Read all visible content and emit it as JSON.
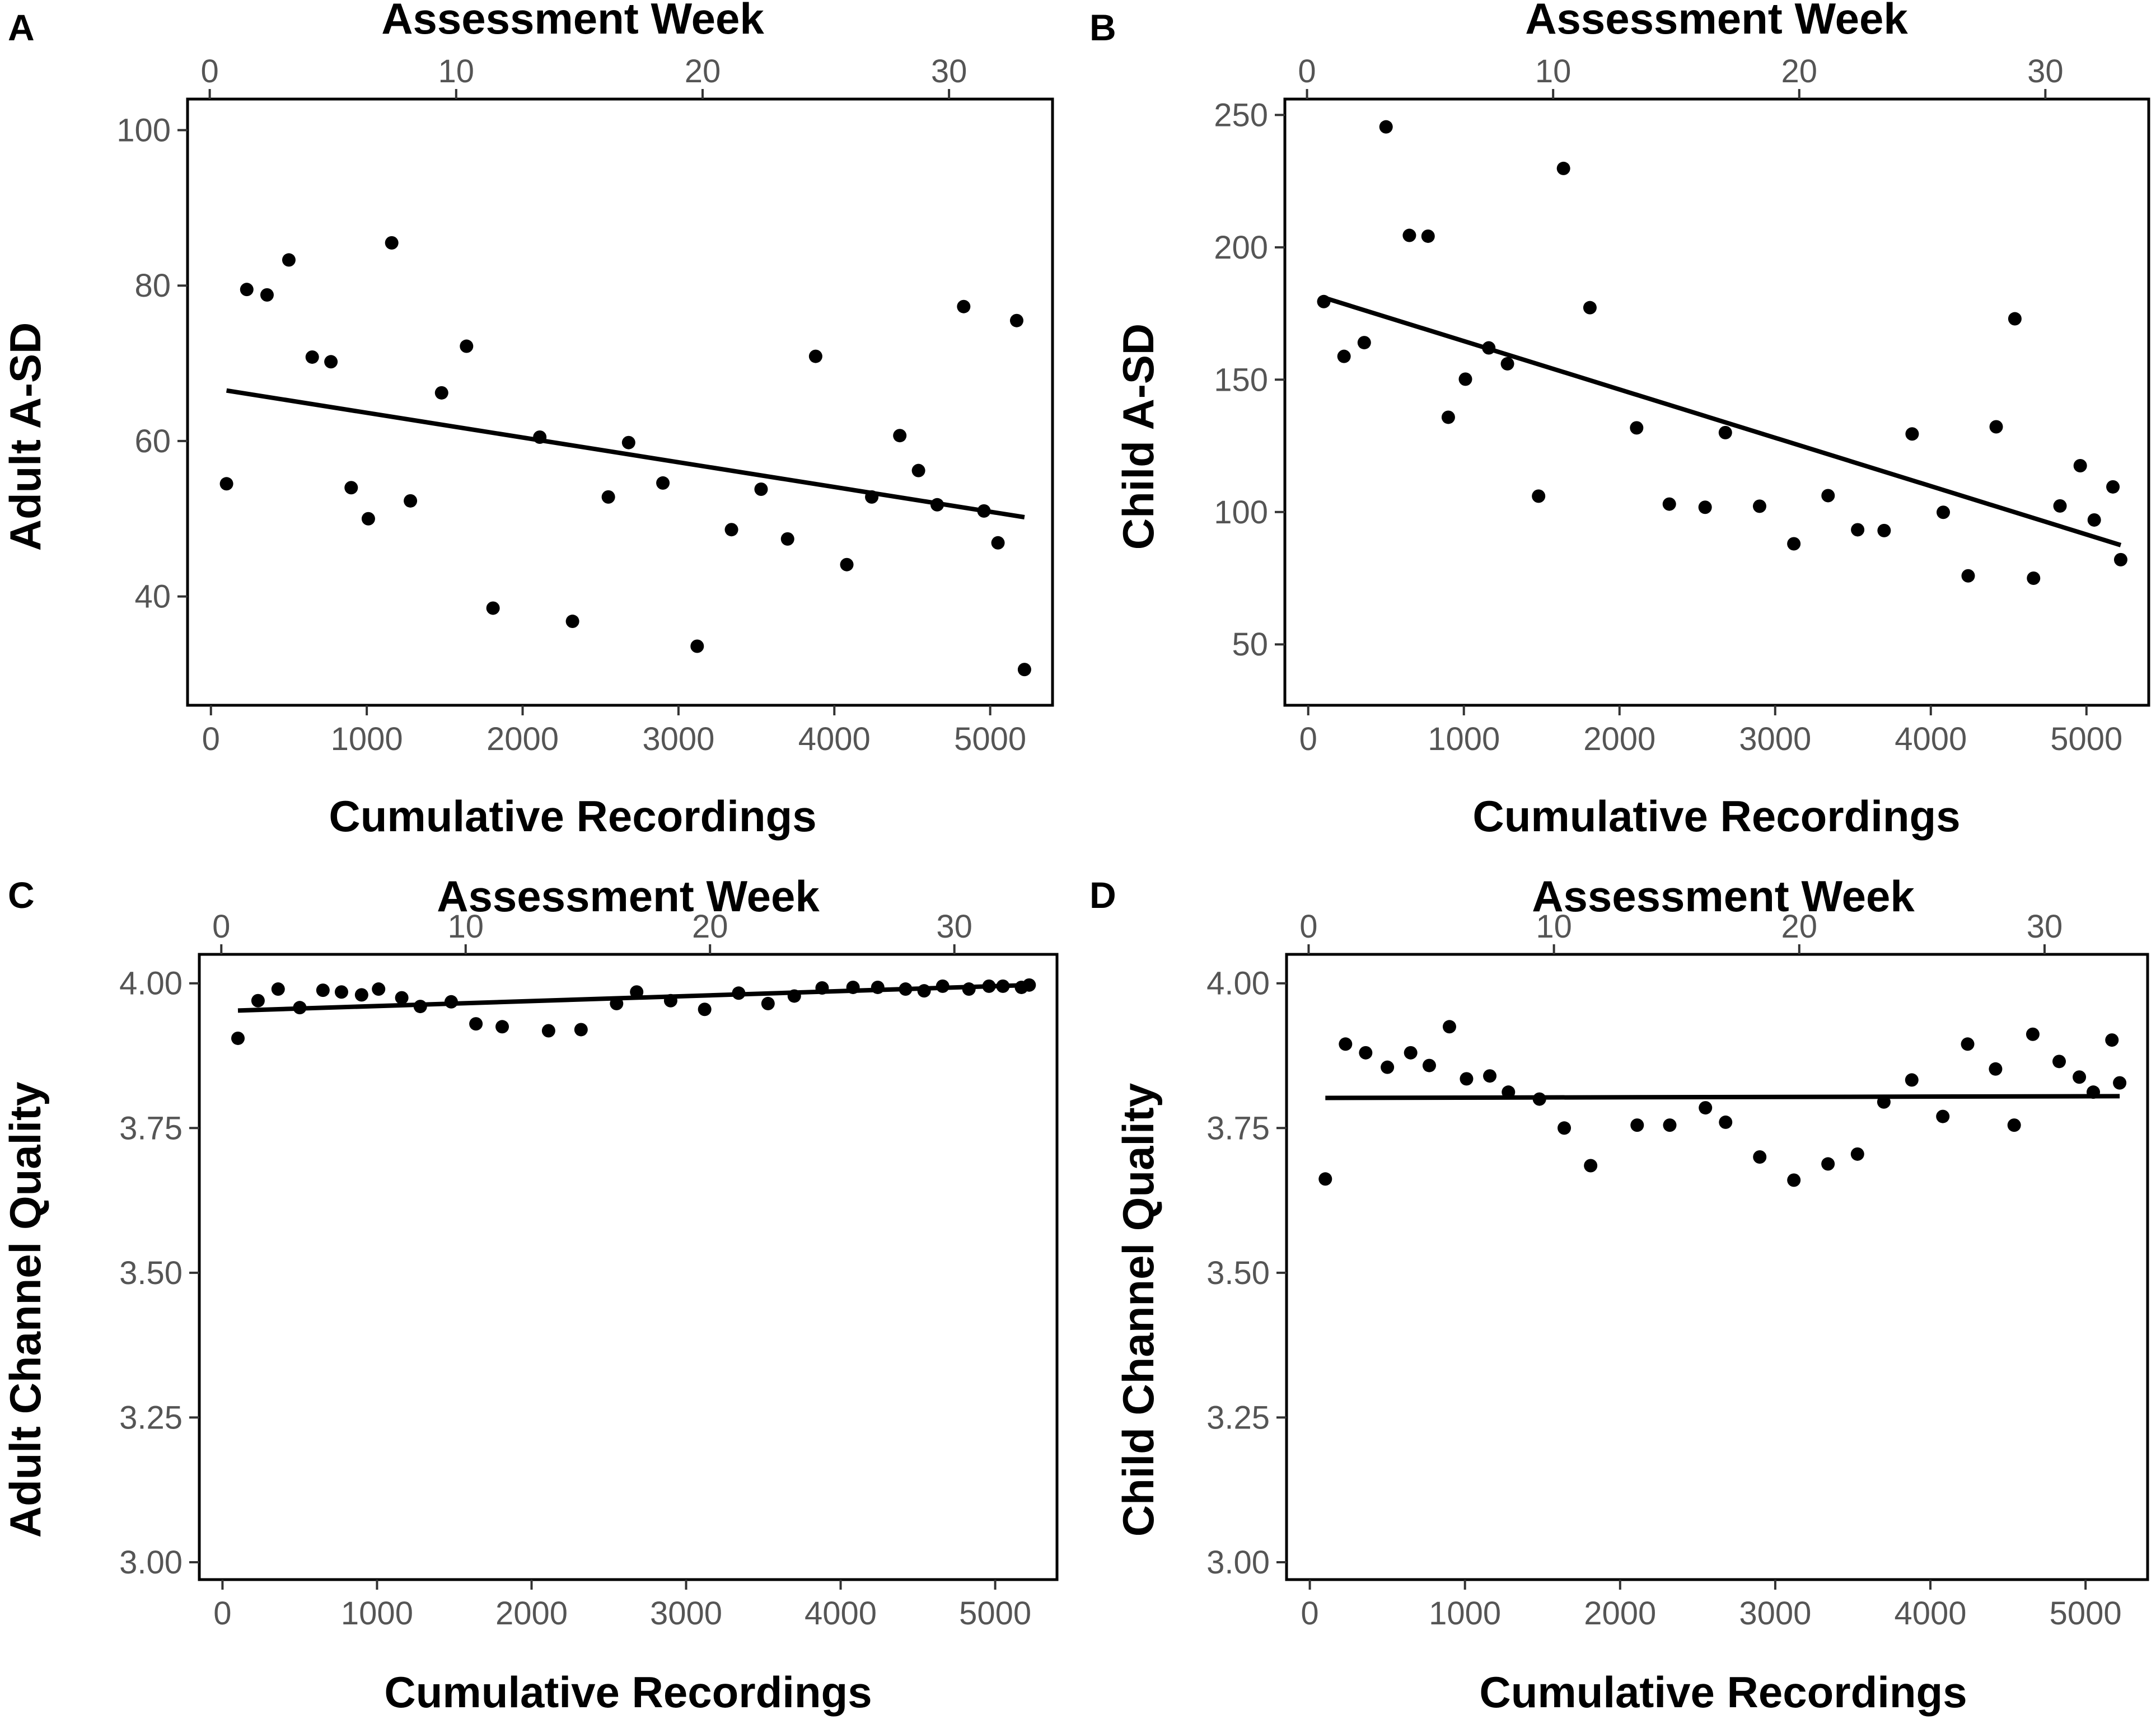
{
  "colors": {
    "background": "#ffffff",
    "points": "#000000",
    "line": "#000000",
    "tick_text": "#555555"
  },
  "chart_data": [
    {
      "panel": "A",
      "type": "scatter",
      "xlabel": "Cumulative Recordings",
      "x2label": "Assessment Week",
      "ylabel": "Adult A-SD",
      "xlim": [
        -150,
        5400
      ],
      "x2lim": [
        -0.9,
        34.2
      ],
      "ylim": [
        26,
        104
      ],
      "xticks": [
        0,
        1000,
        2000,
        3000,
        4000,
        5000
      ],
      "x2ticks": [
        0,
        10,
        20,
        30
      ],
      "yticks": [
        40,
        60,
        80,
        100
      ],
      "ytick_labels": [
        "40",
        "60",
        "80",
        "100"
      ],
      "x": [
        100,
        230,
        360,
        500,
        650,
        770,
        900,
        1010,
        1160,
        1280,
        1480,
        1640,
        1810,
        2110,
        2320,
        2550,
        2680,
        2900,
        3120,
        3340,
        3530,
        3700,
        3880,
        4080,
        4240,
        4420,
        4540,
        4660,
        4830,
        4960,
        5050,
        5170,
        5220
      ],
      "y": [
        54.5,
        79.5,
        78.8,
        83.3,
        70.8,
        70.2,
        54.0,
        50.0,
        85.5,
        52.3,
        66.2,
        72.2,
        38.5,
        60.5,
        36.8,
        52.8,
        59.8,
        54.6,
        33.6,
        48.6,
        53.8,
        47.4,
        70.9,
        44.1,
        52.8,
        60.7,
        56.2,
        51.8,
        77.3,
        51.0,
        46.9,
        75.5,
        30.6
      ],
      "trend": {
        "x": [
          100,
          5220
        ],
        "y": [
          66.5,
          50.2
        ]
      }
    },
    {
      "panel": "B",
      "type": "scatter",
      "xlabel": "Cumulative  Recordings",
      "x2label": "Assessment Week",
      "ylabel": "Child A-SD",
      "xlim": [
        -150,
        5400
      ],
      "x2lim": [
        -0.9,
        34.2
      ],
      "ylim": [
        27,
        256
      ],
      "xticks": [
        0,
        1000,
        2000,
        3000,
        4000,
        5000
      ],
      "x2ticks": [
        0,
        10,
        20,
        30
      ],
      "yticks": [
        50,
        100,
        150,
        200,
        250
      ],
      "ytick_labels": [
        "50",
        "100",
        "150",
        "200",
        "250"
      ],
      "x": [
        100,
        230,
        360,
        500,
        650,
        770,
        900,
        1010,
        1160,
        1280,
        1480,
        1640,
        1810,
        2110,
        2320,
        2550,
        2680,
        2900,
        3120,
        3340,
        3530,
        3700,
        3880,
        4080,
        4240,
        4420,
        4540,
        4660,
        4830,
        4960,
        5050,
        5170,
        5220
      ],
      "y": [
        179.5,
        158.8,
        164.0,
        245.5,
        204.5,
        204.2,
        135.8,
        150.2,
        162.0,
        156.0,
        106.0,
        229.8,
        177.2,
        131.8,
        103.0,
        101.8,
        130.0,
        102.2,
        88.0,
        106.2,
        93.3,
        93.0,
        129.5,
        99.9,
        75.9,
        132.2,
        173.0,
        75.0,
        102.3,
        117.5,
        97.0,
        109.5,
        82.0
      ],
      "trend": {
        "x": [
          100,
          5220
        ],
        "y": [
          181.0,
          87.5
        ]
      }
    },
    {
      "panel": "C",
      "type": "scatter",
      "xlabel": "Cumulative  Recordings",
      "x2label": "Assessment Week",
      "ylabel": "Adult Channel Quality",
      "xlim": [
        -150,
        5400
      ],
      "x2lim": [
        -0.9,
        34.2
      ],
      "ylim": [
        2.97,
        4.05
      ],
      "xticks": [
        0,
        1000,
        2000,
        3000,
        4000,
        5000
      ],
      "x2ticks": [
        0,
        10,
        20,
        30
      ],
      "yticks": [
        3.0,
        3.25,
        3.5,
        3.75,
        4.0
      ],
      "ytick_labels": [
        "3.00",
        "3.25",
        "3.50",
        "3.75",
        "4.00"
      ],
      "x": [
        100,
        230,
        360,
        500,
        650,
        770,
        900,
        1010,
        1160,
        1280,
        1480,
        1640,
        1810,
        2110,
        2320,
        2550,
        2680,
        2900,
        3120,
        3340,
        3530,
        3700,
        3880,
        4080,
        4240,
        4420,
        4540,
        4660,
        4830,
        4960,
        5050,
        5170,
        5220
      ],
      "y": [
        3.905,
        3.97,
        3.99,
        3.958,
        3.988,
        3.985,
        3.98,
        3.99,
        3.975,
        3.96,
        3.968,
        3.93,
        3.925,
        3.918,
        3.92,
        3.965,
        3.985,
        3.97,
        3.955,
        3.983,
        3.965,
        3.978,
        3.992,
        3.993,
        3.993,
        3.99,
        3.987,
        3.995,
        3.99,
        3.995,
        3.995,
        3.993,
        3.997
      ],
      "trend": {
        "x": [
          100,
          5220
        ],
        "y": [
          3.953,
          3.997
        ]
      }
    },
    {
      "panel": "D",
      "type": "scatter",
      "xlabel": "Cumulative Recordings",
      "x2label": "Assessment Week",
      "ylabel": "Child Channel Quality",
      "xlim": [
        -150,
        5400
      ],
      "x2lim": [
        -0.9,
        34.2
      ],
      "ylim": [
        2.97,
        4.05
      ],
      "xticks": [
        0,
        1000,
        2000,
        3000,
        4000,
        5000
      ],
      "x2ticks": [
        0,
        10,
        20,
        30
      ],
      "yticks": [
        3.0,
        3.25,
        3.5,
        3.75,
        4.0
      ],
      "ytick_labels": [
        "3.00",
        "3.25",
        "3.50",
        "3.75",
        "4.00"
      ],
      "x": [
        100,
        230,
        360,
        500,
        650,
        770,
        900,
        1010,
        1160,
        1280,
        1480,
        1640,
        1810,
        2110,
        2320,
        2550,
        2680,
        2900,
        3120,
        3340,
        3530,
        3700,
        3880,
        4080,
        4240,
        4420,
        4540,
        4660,
        4830,
        4960,
        5050,
        5170,
        5220
      ],
      "y": [
        3.662,
        3.895,
        3.88,
        3.855,
        3.88,
        3.858,
        3.925,
        3.835,
        3.84,
        3.812,
        3.8,
        3.75,
        3.685,
        3.755,
        3.755,
        3.785,
        3.76,
        3.7,
        3.66,
        3.688,
        3.705,
        3.795,
        3.833,
        3.77,
        3.895,
        3.852,
        3.755,
        3.912,
        3.865,
        3.838,
        3.812,
        3.902,
        3.828
      ],
      "trend": {
        "x": [
          100,
          5220
        ],
        "y": [
          3.802,
          3.805
        ]
      }
    }
  ]
}
